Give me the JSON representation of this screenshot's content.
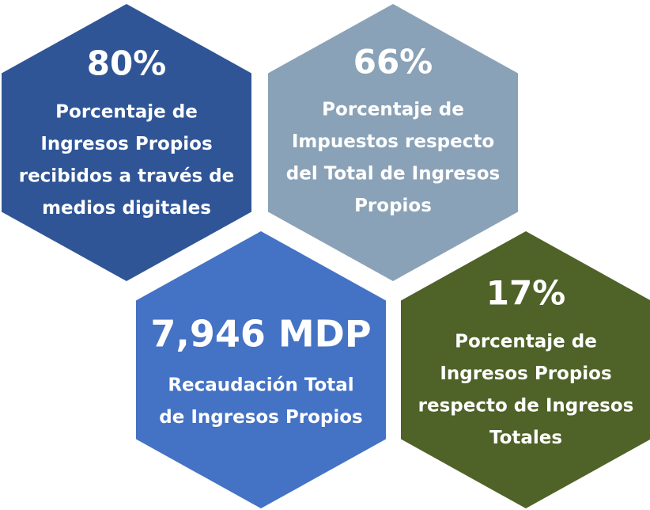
{
  "items": [
    {
      "value": "80%",
      "lines": [
        "Porcentaje de",
        "Ingresos Propios",
        "recibidos a través de",
        "medios digitales"
      ],
      "color": "#2f5597"
    },
    {
      "value": "66%",
      "lines": [
        "Porcentaje de",
        "Impuestos respecto",
        "del Total de Ingresos",
        "Propios"
      ],
      "color": "#8aa2b7"
    },
    {
      "value": "7,946 MDP",
      "lines": [
        "Recaudación Total",
        "de Ingresos Propios"
      ],
      "color": "#4472c4"
    },
    {
      "value": "17%",
      "lines": [
        "Porcentaje de",
        "Ingresos Propios",
        "respecto de Ingresos",
        "Totales"
      ],
      "color": "#4f6228"
    }
  ]
}
